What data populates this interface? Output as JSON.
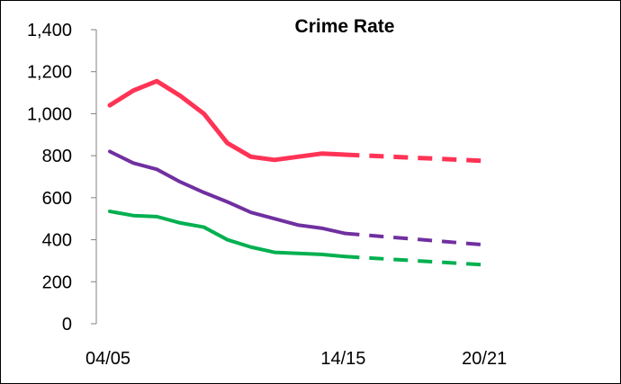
{
  "chart_data": {
    "type": "line",
    "title": "Crime Rate",
    "xlabel": "",
    "ylabel": "",
    "ylim": [
      0,
      1400
    ],
    "y_ticks": [
      0,
      200,
      400,
      600,
      800,
      1000,
      1200,
      1400
    ],
    "y_tick_labels": [
      "0",
      "200",
      "400",
      "600",
      "800",
      "1,000",
      "1,200",
      "1,400"
    ],
    "x_ticks": [
      0,
      10,
      16
    ],
    "x_tick_labels": [
      "04/05",
      "14/15",
      "20/21"
    ],
    "grid": false,
    "legend": "none",
    "series": [
      {
        "color": "#ff3355",
        "observed": {
          "x": [
            0,
            1,
            2,
            3,
            4,
            5,
            6,
            7,
            8,
            9,
            10
          ],
          "y": [
            1040,
            1110,
            1155,
            1085,
            1000,
            860,
            795,
            780,
            795,
            810,
            805
          ]
        },
        "projected": {
          "x": [
            10,
            16
          ],
          "y": [
            805,
            775
          ]
        }
      },
      {
        "color": "#7030a0",
        "observed": {
          "x": [
            0,
            1,
            2,
            3,
            4,
            5,
            6,
            7,
            8,
            9,
            10
          ],
          "y": [
            820,
            765,
            735,
            675,
            625,
            580,
            530,
            500,
            470,
            455,
            430
          ]
        },
        "projected": {
          "x": [
            10,
            16
          ],
          "y": [
            430,
            375
          ]
        }
      },
      {
        "color": "#00b050",
        "observed": {
          "x": [
            0,
            1,
            2,
            3,
            4,
            5,
            6,
            7,
            8,
            9,
            10
          ],
          "y": [
            535,
            515,
            510,
            480,
            460,
            400,
            365,
            340,
            335,
            330,
            320
          ]
        },
        "projected": {
          "x": [
            10,
            16
          ],
          "y": [
            320,
            280
          ]
        }
      }
    ]
  }
}
